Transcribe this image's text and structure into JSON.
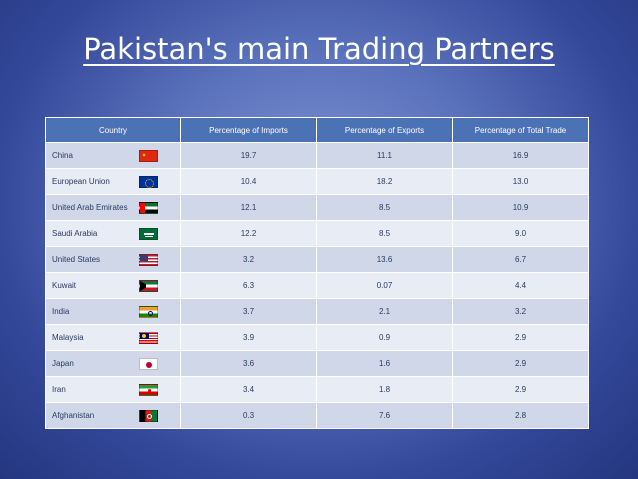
{
  "slide": {
    "title": "Pakistan's main Trading Partners"
  },
  "table": {
    "headers": [
      "Country",
      "Percentage of Imports",
      "Percentage of Exports",
      "Percentage of Total Trade"
    ],
    "rows": [
      {
        "country": "China",
        "flag": "china-flag-icon",
        "imports": "19.7",
        "exports": "11.1",
        "total": "16.9"
      },
      {
        "country": "European Union",
        "flag": "eu-flag-icon",
        "imports": "10.4",
        "exports": "18.2",
        "total": "13.0"
      },
      {
        "country": "United Arab Emirates",
        "flag": "uae-flag-icon",
        "imports": "12.1",
        "exports": "8.5",
        "total": "10.9"
      },
      {
        "country": "Saudi Arabia",
        "flag": "saudi-flag-icon",
        "imports": "12.2",
        "exports": "8.5",
        "total": "9.0"
      },
      {
        "country": "United States",
        "flag": "usa-flag-icon",
        "imports": "3.2",
        "exports": "13.6",
        "total": "6.7"
      },
      {
        "country": "Kuwait",
        "flag": "kuwait-flag-icon",
        "imports": "6.3",
        "exports": "0.07",
        "total": "4.4"
      },
      {
        "country": "India",
        "flag": "india-flag-icon",
        "imports": "3.7",
        "exports": "2.1",
        "total": "3.2"
      },
      {
        "country": "Malaysia",
        "flag": "malaysia-flag-icon",
        "imports": "3.9",
        "exports": "0.9",
        "total": "2.9"
      },
      {
        "country": "Japan",
        "flag": "japan-flag-icon",
        "imports": "3.6",
        "exports": "1.6",
        "total": "2.9"
      },
      {
        "country": "Iran",
        "flag": "iran-flag-icon",
        "imports": "3.4",
        "exports": "1.8",
        "total": "2.9"
      },
      {
        "country": "Afghanistan",
        "flag": "afghanistan-flag-icon",
        "imports": "0.3",
        "exports": "7.6",
        "total": "2.8"
      }
    ]
  },
  "colors": {
    "header_bg": "#4c72b6",
    "row_odd": "#cfd7e8",
    "row_even": "#e8ecf4",
    "background": "#3a4f9f"
  }
}
